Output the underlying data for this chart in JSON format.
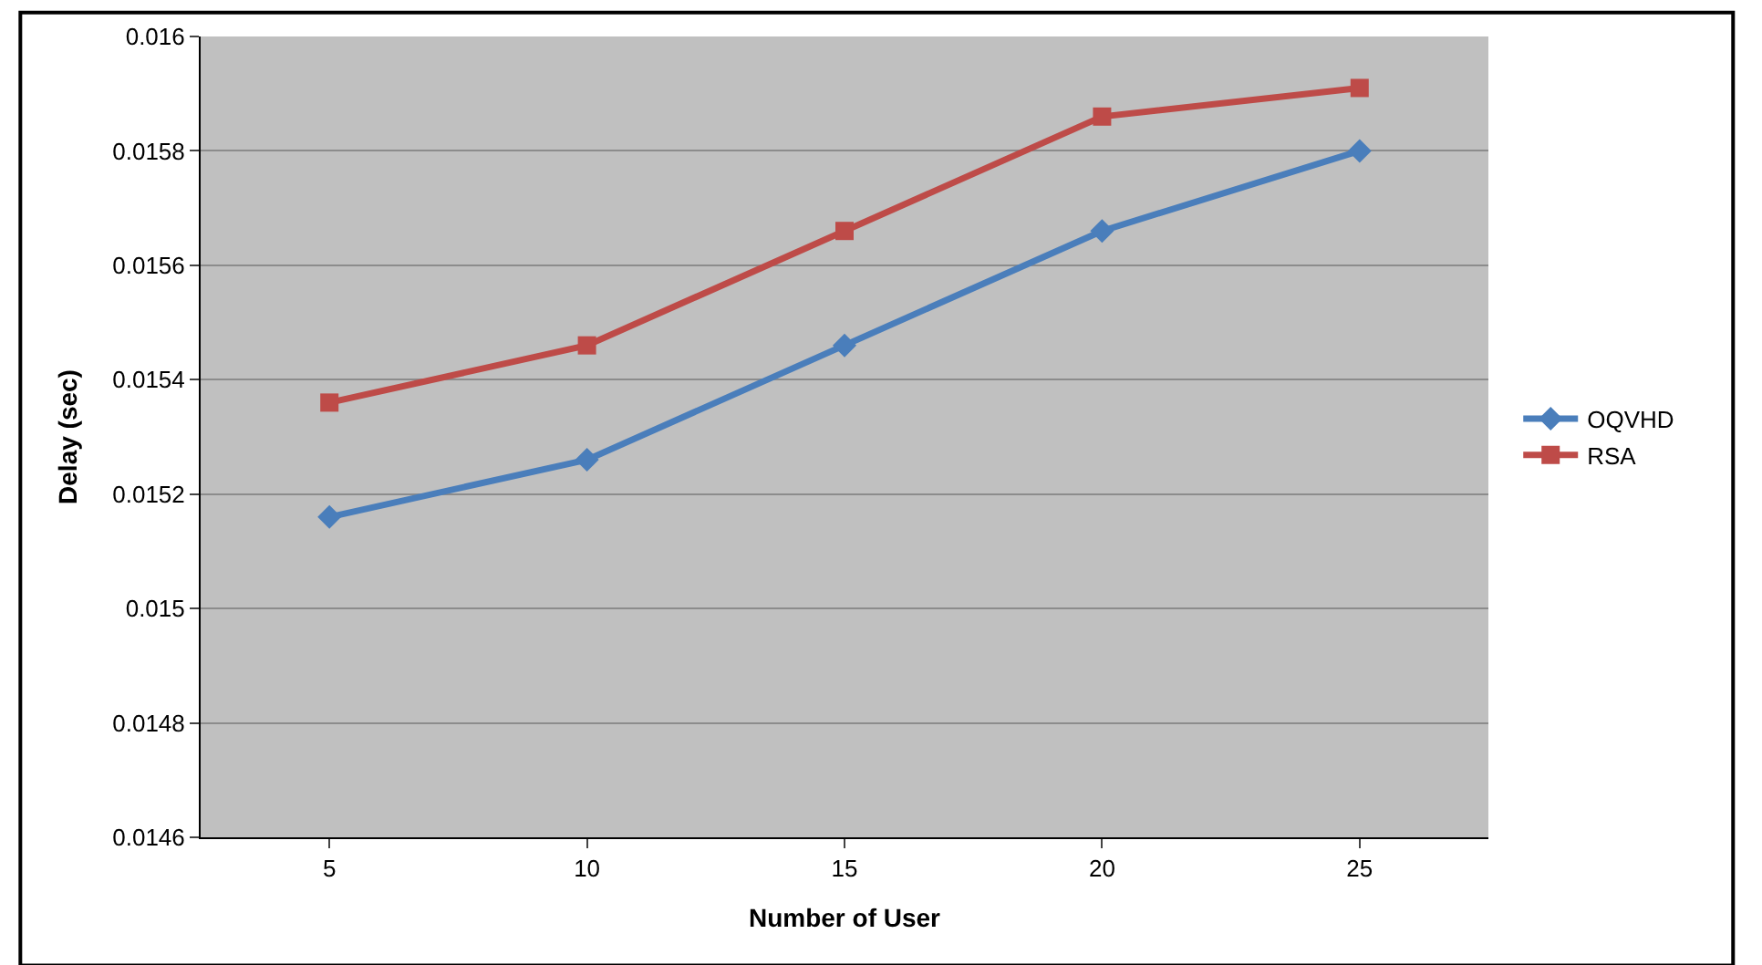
{
  "chart_data": {
    "type": "line",
    "xlabel": "Number of User",
    "ylabel": "Delay (sec)",
    "categories": [
      "5",
      "10",
      "15",
      "20",
      "25"
    ],
    "series": [
      {
        "name": "OQVHD",
        "color": "#4a7ebb",
        "marker": "diamond",
        "values": [
          0.01516,
          0.01526,
          0.01546,
          0.01566,
          0.0158
        ]
      },
      {
        "name": "RSA",
        "color": "#be4b48",
        "marker": "square",
        "values": [
          0.01536,
          0.01546,
          0.01566,
          0.01586,
          0.01591
        ]
      }
    ],
    "ylim": [
      0.0146,
      0.016
    ],
    "yticks": [
      0.0146,
      0.0148,
      0.015,
      0.0152,
      0.0154,
      0.0156,
      0.0158,
      0.016
    ],
    "grid": "y",
    "legend": "right",
    "line_style": "solid"
  }
}
